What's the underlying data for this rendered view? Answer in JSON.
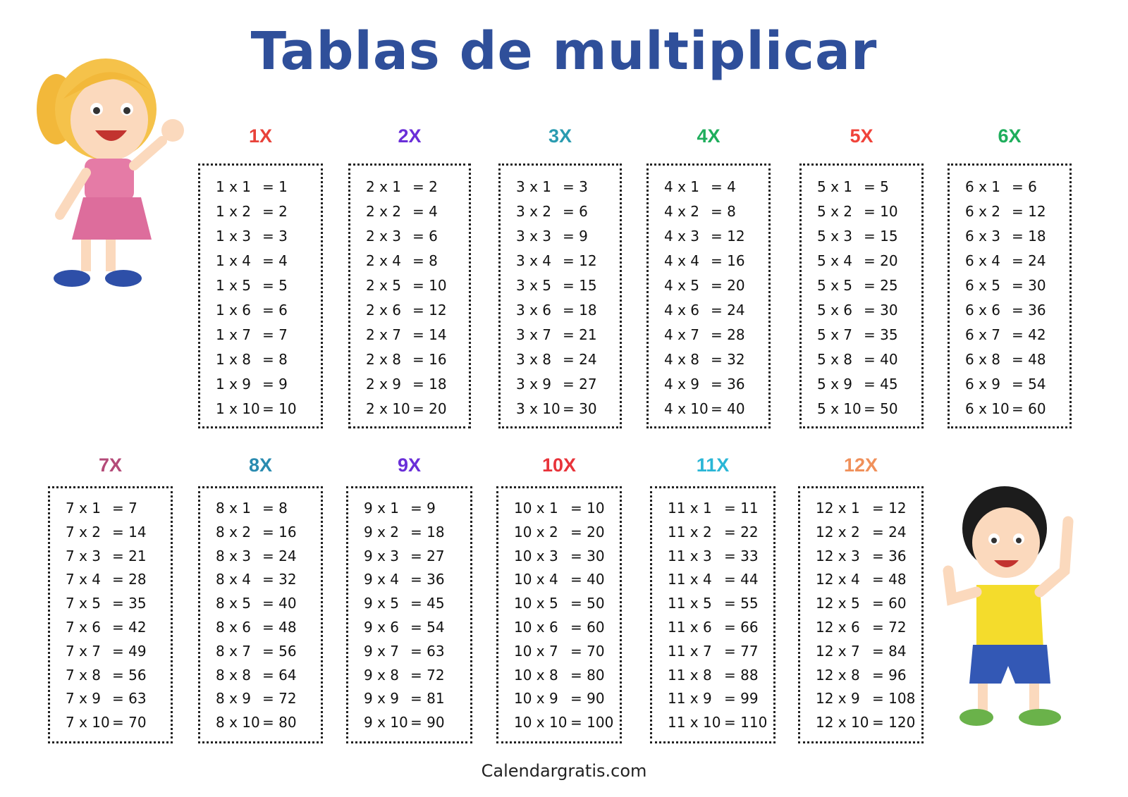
{
  "title": "Tablas de multiplicar",
  "tables": [
    {
      "heading": "1X",
      "color": "#e8423a",
      "rows": [
        [
          "1 x 1",
          "= 1"
        ],
        [
          "1 x 2",
          "= 2"
        ],
        [
          "1 x 3",
          "= 3"
        ],
        [
          "1 x 4",
          "= 4"
        ],
        [
          "1 x 5",
          "= 5"
        ],
        [
          "1 x 6",
          "= 6"
        ],
        [
          "1 x 7",
          "= 7"
        ],
        [
          "1 x 8",
          "= 8"
        ],
        [
          "1 x 9",
          "= 9"
        ],
        [
          "1 x 10",
          "= 10"
        ]
      ]
    },
    {
      "heading": "2X",
      "color": "#6a2fd8",
      "rows": [
        [
          "2 x 1",
          "= 2"
        ],
        [
          "2 x 2",
          "= 4"
        ],
        [
          "2 x 3",
          "= 6"
        ],
        [
          "2 x 4",
          "= 8"
        ],
        [
          "2 x 5",
          "= 10"
        ],
        [
          "2 x 6",
          "= 12"
        ],
        [
          "2 x 7",
          "= 14"
        ],
        [
          "2 x 8",
          "= 16"
        ],
        [
          "2 x 9",
          "= 18"
        ],
        [
          "2 x 10",
          "= 20"
        ]
      ]
    },
    {
      "heading": "3X",
      "color": "#2a9bb0",
      "rows": [
        [
          "3 x 1",
          "= 3"
        ],
        [
          "3 x 2",
          "= 6"
        ],
        [
          "3 x 3",
          "= 9"
        ],
        [
          "3 x 4",
          "= 12"
        ],
        [
          "3 x 5",
          "= 15"
        ],
        [
          "3 x 6",
          "= 18"
        ],
        [
          "3 x 7",
          "= 21"
        ],
        [
          "3 x 8",
          "= 24"
        ],
        [
          "3 x 9",
          "= 27"
        ],
        [
          "3 x 10",
          "= 30"
        ]
      ]
    },
    {
      "heading": "4X",
      "color": "#1fae5c",
      "rows": [
        [
          "4 x 1",
          "= 4"
        ],
        [
          "4 x 2",
          "= 8"
        ],
        [
          "4 x 3",
          "= 12"
        ],
        [
          "4 x 4",
          "= 16"
        ],
        [
          "4 x 5",
          "= 20"
        ],
        [
          "4 x 6",
          "= 24"
        ],
        [
          "4 x 7",
          "= 28"
        ],
        [
          "4 x 8",
          "= 32"
        ],
        [
          "4 x 9",
          "= 36"
        ],
        [
          "4 x 10",
          "= 40"
        ]
      ]
    },
    {
      "heading": "5X",
      "color": "#f0433a",
      "rows": [
        [
          "5 x 1",
          "= 5"
        ],
        [
          "5 x 2",
          "= 10"
        ],
        [
          "5 x 3",
          "= 15"
        ],
        [
          "5 x 4",
          "= 20"
        ],
        [
          "5 x 5",
          "= 25"
        ],
        [
          "5 x 6",
          "= 30"
        ],
        [
          "5 x 7",
          "= 35"
        ],
        [
          "5 x 8",
          "= 40"
        ],
        [
          "5 x 9",
          "= 45"
        ],
        [
          "5 x 10",
          "= 50"
        ]
      ]
    },
    {
      "heading": "6X",
      "color": "#1fae5c",
      "rows": [
        [
          "6 x 1",
          "= 6"
        ],
        [
          "6 x 2",
          "= 12"
        ],
        [
          "6 x 3",
          "= 18"
        ],
        [
          "6 x 4",
          "= 24"
        ],
        [
          "6 x 5",
          "= 30"
        ],
        [
          "6 x 6",
          "= 36"
        ],
        [
          "6 x 7",
          "= 42"
        ],
        [
          "6 x 8",
          "= 48"
        ],
        [
          "6 x 9",
          "= 54"
        ],
        [
          "6 x 10",
          "= 60"
        ]
      ]
    },
    {
      "heading": "7X",
      "color": "#b44a78",
      "rows": [
        [
          "7 x 1",
          "= 7"
        ],
        [
          "7 x 2",
          "= 14"
        ],
        [
          "7 x 3",
          "= 21"
        ],
        [
          "7 x 4",
          "= 28"
        ],
        [
          "7 x 5",
          "= 35"
        ],
        [
          "7 x 6",
          "= 42"
        ],
        [
          "7 x 7",
          "= 49"
        ],
        [
          "7 x 8",
          "= 56"
        ],
        [
          "7 x 9",
          "= 63"
        ],
        [
          "7 x 10",
          "= 70"
        ]
      ]
    },
    {
      "heading": "8X",
      "color": "#2a8bb0",
      "rows": [
        [
          "8 x 1",
          "= 8"
        ],
        [
          "8 x 2",
          "= 16"
        ],
        [
          "8 x 3",
          "= 24"
        ],
        [
          "8 x 4",
          "= 32"
        ],
        [
          "8 x 5",
          "= 40"
        ],
        [
          "8 x 6",
          "= 48"
        ],
        [
          "8 x 7",
          "= 56"
        ],
        [
          "8 x 8",
          "= 64"
        ],
        [
          "8 x 9",
          "= 72"
        ],
        [
          "8 x 10",
          "= 80"
        ]
      ]
    },
    {
      "heading": "9X",
      "color": "#6a2fd8",
      "rows": [
        [
          "9 x 1",
          "= 9"
        ],
        [
          "9 x 2",
          "= 18"
        ],
        [
          "9 x 3",
          "= 27"
        ],
        [
          "9 x 4",
          "= 36"
        ],
        [
          "9 x 5",
          "= 45"
        ],
        [
          "9 x 6",
          "= 54"
        ],
        [
          "9 x 7",
          "= 63"
        ],
        [
          "9 x 8",
          "= 72"
        ],
        [
          "9 x 9",
          "= 81"
        ],
        [
          "9 x 10",
          "= 90"
        ]
      ]
    },
    {
      "heading": "10X",
      "color": "#e8333a",
      "rows": [
        [
          "10 x 1",
          "= 10"
        ],
        [
          "10 x 2",
          "= 20"
        ],
        [
          "10 x 3",
          "= 30"
        ],
        [
          "10 x 4",
          "= 40"
        ],
        [
          "10 x 5",
          "= 50"
        ],
        [
          "10 x 6",
          "= 60"
        ],
        [
          "10 x 7",
          "= 70"
        ],
        [
          "10 x 8",
          "= 80"
        ],
        [
          "10 x 9",
          "= 90"
        ],
        [
          "10 x 10",
          "= 100"
        ]
      ]
    },
    {
      "heading": "11X",
      "color": "#2ab6d6",
      "rows": [
        [
          "11 x 1",
          "= 11"
        ],
        [
          "11 x 2",
          "= 22"
        ],
        [
          "11 x 3",
          "= 33"
        ],
        [
          "11 x 4",
          "= 44"
        ],
        [
          "11 x 5",
          "= 55"
        ],
        [
          "11 x 6",
          "= 66"
        ],
        [
          "11 x 7",
          "= 77"
        ],
        [
          "11 x 8",
          "= 88"
        ],
        [
          "11 x 9",
          "= 99"
        ],
        [
          "11 x 10",
          "= 110"
        ]
      ]
    },
    {
      "heading": "12X",
      "color": "#f0905a",
      "rows": [
        [
          "12 x 1",
          "= 12"
        ],
        [
          "12 x 2",
          "= 24"
        ],
        [
          "12 x 3",
          "= 36"
        ],
        [
          "12 x 4",
          "= 48"
        ],
        [
          "12 x 5",
          "= 60"
        ],
        [
          "12 x 6",
          "= 72"
        ],
        [
          "12 x 7",
          "= 84"
        ],
        [
          "12 x 8",
          "= 96"
        ],
        [
          "12 x 9",
          "= 108"
        ],
        [
          "12 x 10",
          "= 120"
        ]
      ]
    }
  ],
  "footer": "Calendargratis.com"
}
